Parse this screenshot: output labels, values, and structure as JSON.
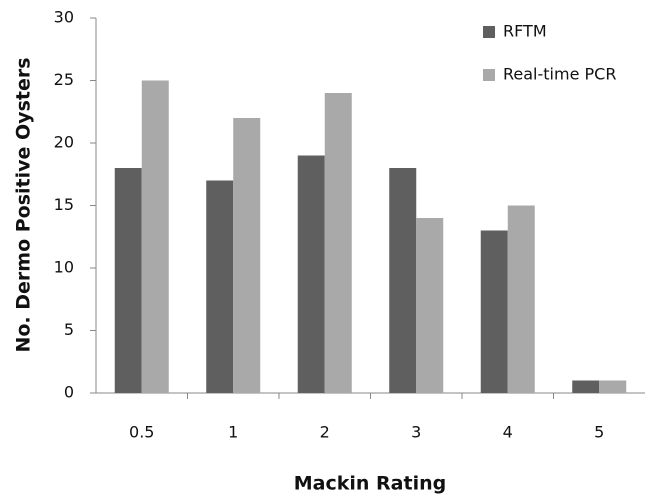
{
  "chart_data": {
    "type": "bar",
    "categories": [
      "0.5",
      "1",
      "2",
      "3",
      "4",
      "5"
    ],
    "series": [
      {
        "name": "RFTM",
        "color": "#5f5f5f",
        "values": [
          18,
          17,
          19,
          18,
          13,
          1
        ]
      },
      {
        "name": "Real-time PCR",
        "color": "#a9a9a9",
        "values": [
          25,
          22,
          24,
          14,
          15,
          1
        ]
      }
    ],
    "xlabel": "Mackin Rating",
    "ylabel": "No. Dermo Positive Oysters",
    "ylim": [
      0,
      30
    ],
    "yticks": [
      0,
      5,
      10,
      15,
      20,
      25,
      30
    ],
    "grid": false,
    "legend": "upper-right"
  }
}
